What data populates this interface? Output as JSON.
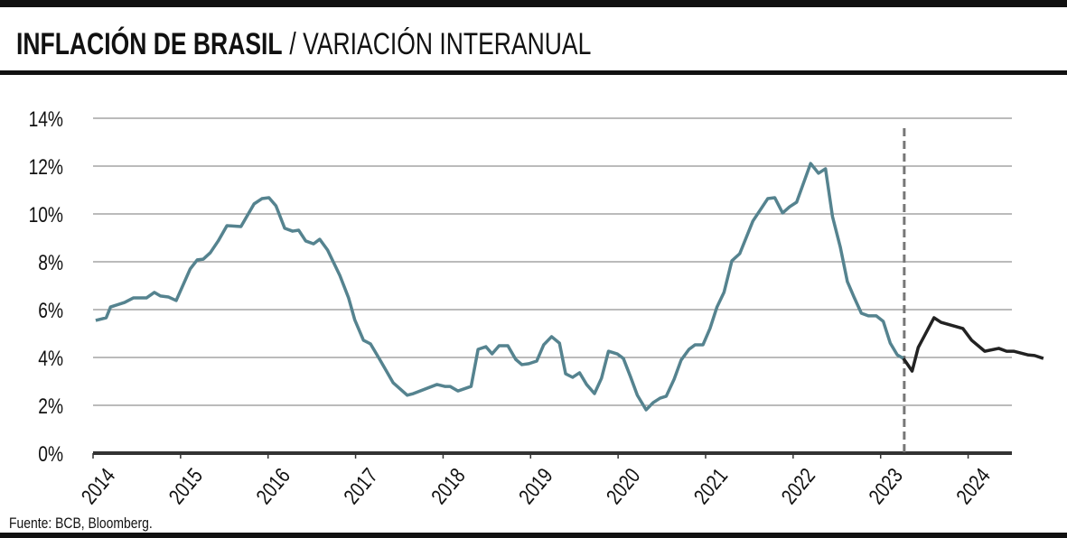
{
  "chart_data": {
    "type": "line",
    "title": "INFLACIÓN DE BRASIL",
    "subtitle": "/ VARIACIÓN INTERANUAL",
    "source": "Fuente: BCB, Bloomberg.",
    "xlim": [
      2014,
      2024.5
    ],
    "xticks": [
      2014,
      2015,
      2016,
      2017,
      2018,
      2019,
      2020,
      2021,
      2022,
      2023,
      2024
    ],
    "ylim": [
      0,
      14
    ],
    "yticks": [
      {
        "value": 0,
        "label": "0%"
      },
      {
        "value": 2,
        "label": "2%"
      },
      {
        "value": 4,
        "label": "4%"
      },
      {
        "value": 6,
        "label": "6%"
      },
      {
        "value": 8,
        "label": "8%"
      },
      {
        "value": 10,
        "label": "10%"
      },
      {
        "value": 12,
        "label": "12%"
      },
      {
        "value": 14,
        "label": "14%"
      }
    ],
    "grid": true,
    "vline": 2023.27,
    "series": [
      {
        "color": "#55838f",
        "x": [
          2014.03,
          2014.15,
          2014.2,
          2014.36,
          2014.46,
          2014.61,
          2014.7,
          2014.77,
          2014.86,
          2014.95,
          2015.11,
          2015.19,
          2015.26,
          2015.34,
          2015.43,
          2015.53,
          2015.69,
          2015.84,
          2015.93,
          2016.01,
          2016.09,
          2016.19,
          2016.28,
          2016.35,
          2016.43,
          2016.52,
          2016.59,
          2016.68,
          2016.82,
          2016.92,
          2016.99,
          2017.09,
          2017.17,
          2017.28,
          2017.43,
          2017.59,
          2017.66,
          2017.93,
          2018.02,
          2018.08,
          2018.17,
          2018.32,
          2018.4,
          2018.49,
          2018.56,
          2018.64,
          2018.74,
          2018.83,
          2018.9,
          2018.98,
          2019.07,
          2019.15,
          2019.24,
          2019.33,
          2019.4,
          2019.48,
          2019.56,
          2019.64,
          2019.73,
          2019.81,
          2019.89,
          2019.99,
          2020.06,
          2020.14,
          2020.22,
          2020.32,
          2020.4,
          2020.48,
          2020.55,
          2020.64,
          2020.72,
          2020.81,
          2020.88,
          2020.97,
          2021.05,
          2021.13,
          2021.21,
          2021.3,
          2021.39,
          2021.54,
          2021.71,
          2021.79,
          2021.88,
          2021.96,
          2022.04,
          2022.2,
          2022.29,
          2022.37,
          2022.45,
          2022.54,
          2022.62,
          2022.7,
          2022.78,
          2022.86,
          2022.95,
          2023.03,
          2023.11,
          2023.19,
          2023.26
        ],
        "values": [
          5.55,
          5.66,
          6.11,
          6.3,
          6.49,
          6.49,
          6.72,
          6.57,
          6.53,
          6.38,
          7.7,
          8.08,
          8.11,
          8.38,
          8.87,
          9.51,
          9.47,
          10.42,
          10.64,
          10.68,
          10.34,
          9.4,
          9.28,
          9.32,
          8.87,
          8.75,
          8.94,
          8.49,
          7.43,
          6.49,
          5.58,
          4.72,
          4.57,
          3.89,
          2.94,
          2.42,
          2.49,
          2.87,
          2.79,
          2.79,
          2.6,
          2.79,
          4.34,
          4.45,
          4.15,
          4.49,
          4.49,
          3.92,
          3.7,
          3.74,
          3.85,
          4.53,
          4.87,
          4.6,
          3.32,
          3.17,
          3.36,
          2.87,
          2.49,
          3.13,
          4.26,
          4.15,
          3.96,
          3.21,
          2.42,
          1.81,
          2.11,
          2.3,
          2.38,
          3.09,
          3.89,
          4.34,
          4.53,
          4.53,
          5.21,
          6.11,
          6.72,
          8.04,
          8.34,
          9.7,
          10.64,
          10.68,
          10.04,
          10.3,
          10.49,
          12.11,
          11.7,
          11.89,
          9.89,
          8.6,
          7.17,
          6.49,
          5.85,
          5.74,
          5.74,
          5.51,
          4.6,
          4.11,
          3.96
        ]
      },
      {
        "color": "#222222",
        "x": [
          2023.26,
          2023.31,
          2023.36,
          2023.43,
          2023.61,
          2023.69,
          2023.94,
          2024.04,
          2024.19,
          2024.35,
          2024.44,
          2024.52,
          2024.68,
          2024.76,
          2024.86
        ],
        "values": [
          3.96,
          3.7,
          3.43,
          4.42,
          5.66,
          5.47,
          5.21,
          4.72,
          4.26,
          4.38,
          4.26,
          4.26,
          4.11,
          4.08,
          3.96
        ]
      }
    ]
  }
}
